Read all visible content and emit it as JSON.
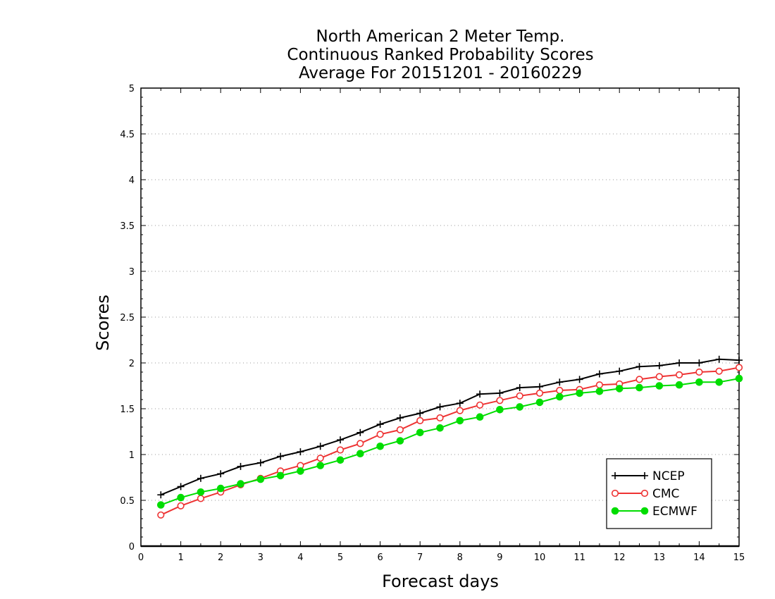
{
  "chart_data": {
    "type": "line",
    "title_lines": [
      "North American 2 Meter Temp.",
      "Continuous Ranked Probability Scores",
      "Average For 20151201 - 20160229"
    ],
    "xlabel": "Forecast days",
    "ylabel": "Scores",
    "xlim": [
      0,
      15
    ],
    "ylim": [
      0,
      5
    ],
    "xticks": [
      0,
      1,
      2,
      3,
      4,
      5,
      6,
      7,
      8,
      9,
      10,
      11,
      12,
      13,
      14,
      15
    ],
    "yticks": [
      0,
      0.5,
      1,
      1.5,
      2,
      2.5,
      3,
      3.5,
      4,
      4.5,
      5
    ],
    "ytick_labels": [
      "0",
      "0.5",
      "1",
      "1.5",
      "2",
      "2.5",
      "3",
      "3.5",
      "4",
      "4.5",
      "5"
    ],
    "grid": "horizontal-dotted",
    "legend_position": "bottom-right",
    "x": [
      0.5,
      1,
      1.5,
      2,
      2.5,
      3,
      3.5,
      4,
      4.5,
      5,
      5.5,
      6,
      6.5,
      7,
      7.5,
      8,
      8.5,
      9,
      9.5,
      10,
      10.5,
      11,
      11.5,
      12,
      12.5,
      13,
      13.5,
      14,
      14.5,
      15
    ],
    "series": [
      {
        "name": "NCEP",
        "color": "#000000",
        "marker": "plus",
        "values": [
          0.56,
          0.65,
          0.74,
          0.79,
          0.87,
          0.91,
          0.98,
          1.03,
          1.09,
          1.16,
          1.24,
          1.33,
          1.4,
          1.45,
          1.52,
          1.56,
          1.66,
          1.67,
          1.73,
          1.74,
          1.79,
          1.82,
          1.88,
          1.91,
          1.96,
          1.97,
          2.0,
          2.0,
          2.04,
          2.03
        ]
      },
      {
        "name": "CMC",
        "color": "#ee3333",
        "marker": "open-circle",
        "values": [
          0.34,
          0.44,
          0.52,
          0.59,
          0.67,
          0.74,
          0.82,
          0.88,
          0.96,
          1.05,
          1.12,
          1.22,
          1.27,
          1.37,
          1.4,
          1.48,
          1.54,
          1.59,
          1.64,
          1.67,
          1.7,
          1.71,
          1.76,
          1.77,
          1.82,
          1.85,
          1.87,
          1.9,
          1.91,
          1.95
        ]
      },
      {
        "name": "ECMWF",
        "color": "#00dd00",
        "marker": "filled-circle",
        "values": [
          0.45,
          0.53,
          0.59,
          0.63,
          0.68,
          0.73,
          0.77,
          0.82,
          0.88,
          0.94,
          1.01,
          1.09,
          1.15,
          1.24,
          1.29,
          1.37,
          1.41,
          1.49,
          1.52,
          1.57,
          1.63,
          1.67,
          1.69,
          1.72,
          1.73,
          1.75,
          1.76,
          1.79,
          1.79,
          1.83
        ]
      }
    ]
  }
}
